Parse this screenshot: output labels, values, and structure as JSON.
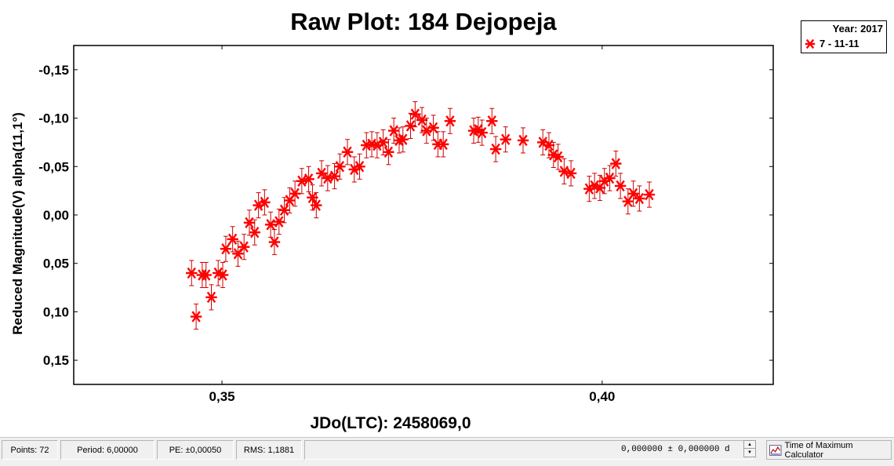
{
  "chart_data": {
    "type": "scatter",
    "title": "Raw Plot: 184 Dejopeja",
    "xlabel": "JDo(LTC): 2458069,0",
    "ylabel": "Reduced Magnitude(V) alpha(11,1°)",
    "xlim": [
      0.3305,
      0.4225
    ],
    "ylim": [
      0.175,
      -0.175
    ],
    "y_inverted": true,
    "xticks": [
      0.35,
      0.4
    ],
    "xtick_labels": [
      "0,35",
      "0,40"
    ],
    "yticks": [
      -0.15,
      -0.1,
      -0.05,
      0.0,
      0.05,
      0.1,
      0.15
    ],
    "ytick_labels": [
      "-0,15",
      "-0,10",
      "-0,05",
      "0,00",
      "0,05",
      "0,10",
      "0,15"
    ],
    "legend_position": "top-right, outside plot",
    "marker_color": "#ff0000",
    "errorbar_color": "#cc0000",
    "series": [
      {
        "name": "7 - 11-11",
        "error": 0.013,
        "x": [
          0.346,
          0.3466,
          0.3474,
          0.3479,
          0.3486,
          0.3495,
          0.3501,
          0.3505,
          0.3514,
          0.3521,
          0.3529,
          0.3536,
          0.3543,
          0.3548,
          0.3556,
          0.3564,
          0.3569,
          0.3575,
          0.3582,
          0.3589,
          0.3596,
          0.3605,
          0.3614,
          0.3619,
          0.3624,
          0.3631,
          0.3639,
          0.3648,
          0.3655,
          0.3665,
          0.3674,
          0.3681,
          0.369,
          0.3697,
          0.3704,
          0.3712,
          0.3719,
          0.3726,
          0.3733,
          0.3738,
          0.3748,
          0.3754,
          0.3763,
          0.3769,
          0.3778,
          0.3784,
          0.3791,
          0.38,
          0.3831,
          0.3837,
          0.3842,
          0.3855,
          0.386,
          0.3873,
          0.3896,
          0.3922,
          0.393,
          0.3936,
          0.3942,
          0.395,
          0.3959,
          0.3983,
          0.399,
          0.3997,
          0.4003,
          0.401,
          0.4018,
          0.4024,
          0.4034,
          0.4041,
          0.4049,
          0.4062
        ],
        "y": [
          0.06,
          0.105,
          0.062,
          0.062,
          0.085,
          0.06,
          0.062,
          0.035,
          0.025,
          0.04,
          0.033,
          0.008,
          0.018,
          -0.01,
          -0.013,
          0.01,
          0.028,
          0.007,
          -0.005,
          -0.015,
          -0.022,
          -0.035,
          -0.037,
          -0.018,
          -0.01,
          -0.043,
          -0.038,
          -0.04,
          -0.05,
          -0.065,
          -0.047,
          -0.05,
          -0.072,
          -0.073,
          -0.072,
          -0.075,
          -0.065,
          -0.087,
          -0.077,
          -0.078,
          -0.092,
          -0.104,
          -0.098,
          -0.087,
          -0.09,
          -0.073,
          -0.073,
          -0.097,
          -0.087,
          -0.088,
          -0.085,
          -0.097,
          -0.068,
          -0.078,
          -0.077,
          -0.075,
          -0.072,
          -0.062,
          -0.06,
          -0.045,
          -0.043,
          -0.027,
          -0.03,
          -0.028,
          -0.035,
          -0.038,
          -0.053,
          -0.03,
          -0.014,
          -0.022,
          -0.017,
          -0.021
        ]
      }
    ]
  },
  "legend": {
    "year_label": "Year: 2017",
    "entry_label": "7 - 11-11"
  },
  "statusbar": {
    "points": "Points: 72",
    "period": "Period: 6,00000",
    "pe": "PE: ±0,00050",
    "rms": "RMS: 1,1881",
    "jd_value": "0,000000  ±  0,000000 d",
    "calc_button": "Time of Maximum Calculator"
  }
}
